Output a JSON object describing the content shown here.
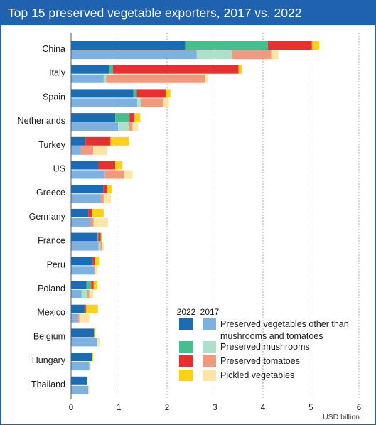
{
  "title": "Top 15 preserved vegetable exporters, 2017 vs. 2022",
  "chart_data": {
    "type": "bar",
    "orientation": "horizontal",
    "stacked": true,
    "xlim": [
      0,
      6
    ],
    "xticks": [
      "0",
      "1",
      "2",
      "3",
      "4",
      "5",
      "6"
    ],
    "x_unit": "USD billion",
    "years": [
      "2022",
      "2017"
    ],
    "segments": [
      {
        "name": "Preserved vegetables other than mushrooms and tomatoes",
        "color_2022": "#1a6db5",
        "color_2017": "#7fb1e0"
      },
      {
        "name": "Preserved mushrooms",
        "color_2022": "#46bf8f",
        "color_2017": "#aedfc8"
      },
      {
        "name": "Preserved tomatoes",
        "color_2022": "#e8302f",
        "color_2017": "#f39a7e"
      },
      {
        "name": "Pickled vegetables",
        "color_2022": "#fcd116",
        "color_2017": "#fde5a6"
      }
    ],
    "categories": [
      "China",
      "Italy",
      "Spain",
      "Netherlands",
      "Turkey",
      "US",
      "Greece",
      "Germany",
      "France",
      "Peru",
      "Poland",
      "Mexico",
      "Belgium",
      "Hungary",
      "Thailand"
    ],
    "values_2022": [
      [
        2.38,
        1.72,
        0.92,
        0.15
      ],
      [
        0.8,
        0.07,
        2.62,
        0.07
      ],
      [
        1.3,
        0.07,
        0.6,
        0.1
      ],
      [
        0.92,
        0.3,
        0.1,
        0.12
      ],
      [
        0.3,
        0.0,
        0.52,
        0.38
      ],
      [
        0.57,
        0.0,
        0.35,
        0.15
      ],
      [
        0.67,
        0.0,
        0.08,
        0.1
      ],
      [
        0.36,
        0.0,
        0.07,
        0.25
      ],
      [
        0.55,
        0.02,
        0.05,
        0.02
      ],
      [
        0.45,
        0.0,
        0.05,
        0.08
      ],
      [
        0.32,
        0.1,
        0.05,
        0.08
      ],
      [
        0.28,
        0.0,
        0.03,
        0.25
      ],
      [
        0.48,
        0.0,
        0.0,
        0.03
      ],
      [
        0.43,
        0.0,
        0.0,
        0.03
      ],
      [
        0.33,
        0.0,
        0.0,
        0.0
      ]
    ],
    "values_2017": [
      [
        2.62,
        0.73,
        0.82,
        0.15
      ],
      [
        0.68,
        0.05,
        2.06,
        0.06
      ],
      [
        1.38,
        0.08,
        0.46,
        0.12
      ],
      [
        0.98,
        0.22,
        0.08,
        0.12
      ],
      [
        0.2,
        0.0,
        0.26,
        0.29
      ],
      [
        0.7,
        0.0,
        0.4,
        0.18
      ],
      [
        0.62,
        0.0,
        0.06,
        0.15
      ],
      [
        0.4,
        0.0,
        0.07,
        0.3
      ],
      [
        0.57,
        0.04,
        0.04,
        0.03
      ],
      [
        0.48,
        0.0,
        0.02,
        0.05
      ],
      [
        0.22,
        0.12,
        0.04,
        0.08
      ],
      [
        0.14,
        0.0,
        0.03,
        0.21
      ],
      [
        0.55,
        0.0,
        0.0,
        0.05
      ],
      [
        0.38,
        0.0,
        0.0,
        0.03
      ],
      [
        0.36,
        0.0,
        0.0,
        0.02
      ]
    ],
    "legend": {
      "placement": "bottom-right",
      "header_2022": "2022",
      "header_2017": "2017",
      "items": [
        {
          "lines": [
            "Preserved vegetables other than",
            "mushrooms and tomatoes"
          ]
        },
        {
          "lines": [
            "Preserved mushrooms"
          ]
        },
        {
          "lines": [
            "Preserved tomatoes"
          ]
        },
        {
          "lines": [
            "Pickled vegetables"
          ]
        }
      ]
    },
    "grid": "vertical dashed"
  }
}
